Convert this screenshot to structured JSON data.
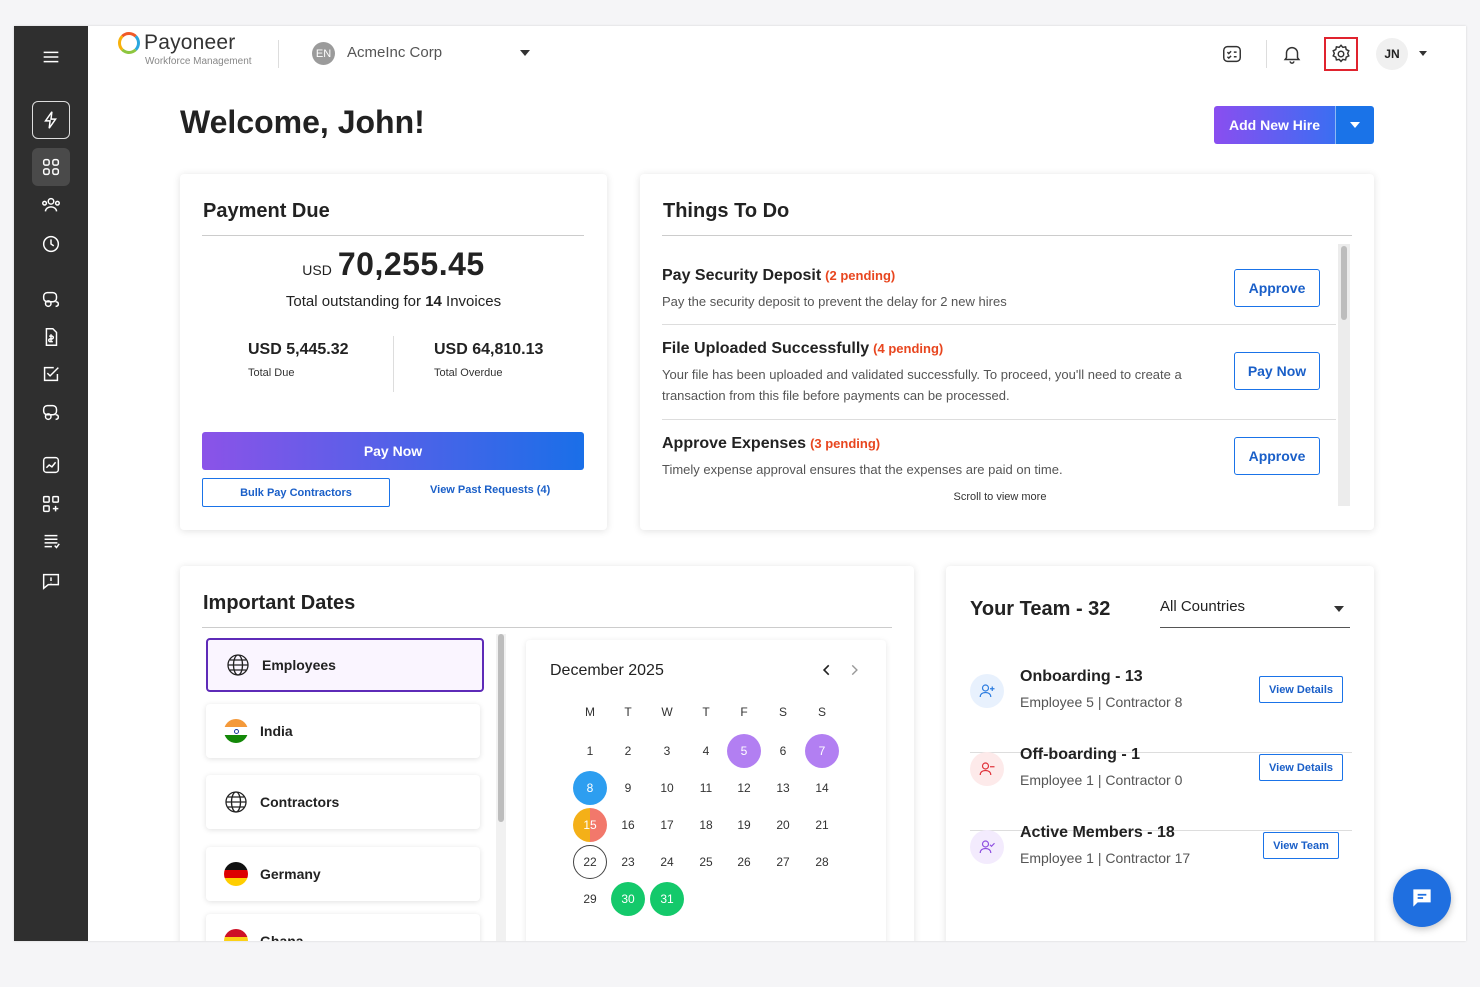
{
  "app": {
    "logo_name": "Payoneer",
    "logo_sub": "Workforce Management"
  },
  "org": {
    "badge": "EN",
    "name": "AcmeInc Corp"
  },
  "user": {
    "initials": "JN"
  },
  "page": {
    "welcome": "Welcome, John!",
    "add_hire": "Add New Hire"
  },
  "payment": {
    "title": "Payment Due",
    "currency": "USD",
    "amount": "70,255.45",
    "sub_prefix": "Total outstanding for ",
    "sub_count": "14",
    "sub_suffix": " Invoices",
    "due_value": "USD 5,445.32",
    "due_label": "Total Due",
    "overdue_value": "USD 64,810.13",
    "overdue_label": "Total Overdue",
    "pay_now": "Pay Now",
    "bulk_pay": "Bulk Pay Contractors",
    "past_requests": "View Past Requests (4)"
  },
  "todo": {
    "title": "Things To Do",
    "items": [
      {
        "title": "Pay Security Deposit",
        "pending": "(2 pending)",
        "desc": "Pay the security deposit to prevent the delay for 2 new hires",
        "action": "Approve"
      },
      {
        "title": "File Uploaded Successfully",
        "pending": "(4 pending)",
        "desc": "Your file has been uploaded and validated successfully. To proceed, you'll need to create a transaction from this file before payments can be processed.",
        "action": "Pay Now"
      },
      {
        "title": "Approve Expenses",
        "pending": "(3 pending)",
        "desc": "Timely expense approval ensures that the expenses are paid on time.",
        "action": "Approve"
      }
    ],
    "scroll_hint": "Scroll to view more"
  },
  "dates": {
    "title": "Important Dates",
    "groups": [
      "Employees",
      "India",
      "Contractors",
      "Germany",
      "Ghana"
    ],
    "calendar": {
      "month": "December 2025",
      "weekdays": [
        "M",
        "T",
        "W",
        "T",
        "F",
        "S",
        "S"
      ],
      "weeks": [
        [
          "1",
          "2",
          "3",
          "4",
          "5",
          "6",
          "7"
        ],
        [
          "8",
          "9",
          "10",
          "11",
          "12",
          "13",
          "14"
        ],
        [
          "15",
          "16",
          "17",
          "18",
          "19",
          "20",
          "21"
        ],
        [
          "22",
          "23",
          "24",
          "25",
          "26",
          "27",
          "28"
        ],
        [
          "29",
          "30",
          "31"
        ]
      ],
      "highlights": {
        "5": "purple",
        "7": "purple",
        "8": "blue",
        "15": "split",
        "22": "today",
        "30": "green",
        "31": "green"
      }
    }
  },
  "team": {
    "title": "Your Team - 32",
    "country_filter": "All Countries",
    "rows": [
      {
        "heading": "Onboarding - 13",
        "sub": "Employee 5 | Contractor 8",
        "action": "View Details",
        "color": "#2d7de0",
        "bg": "#e8f1fd"
      },
      {
        "heading": "Off-boarding - 1",
        "sub": "Employee 1 | Contractor 0",
        "action": "View Details",
        "color": "#e0323a",
        "bg": "#fdeaea"
      },
      {
        "heading": "Active Members - 18",
        "sub": "Employee 1 | Contractor 17",
        "action": "View Team",
        "color": "#8e4fe0",
        "bg": "#f3ebfd"
      }
    ]
  }
}
